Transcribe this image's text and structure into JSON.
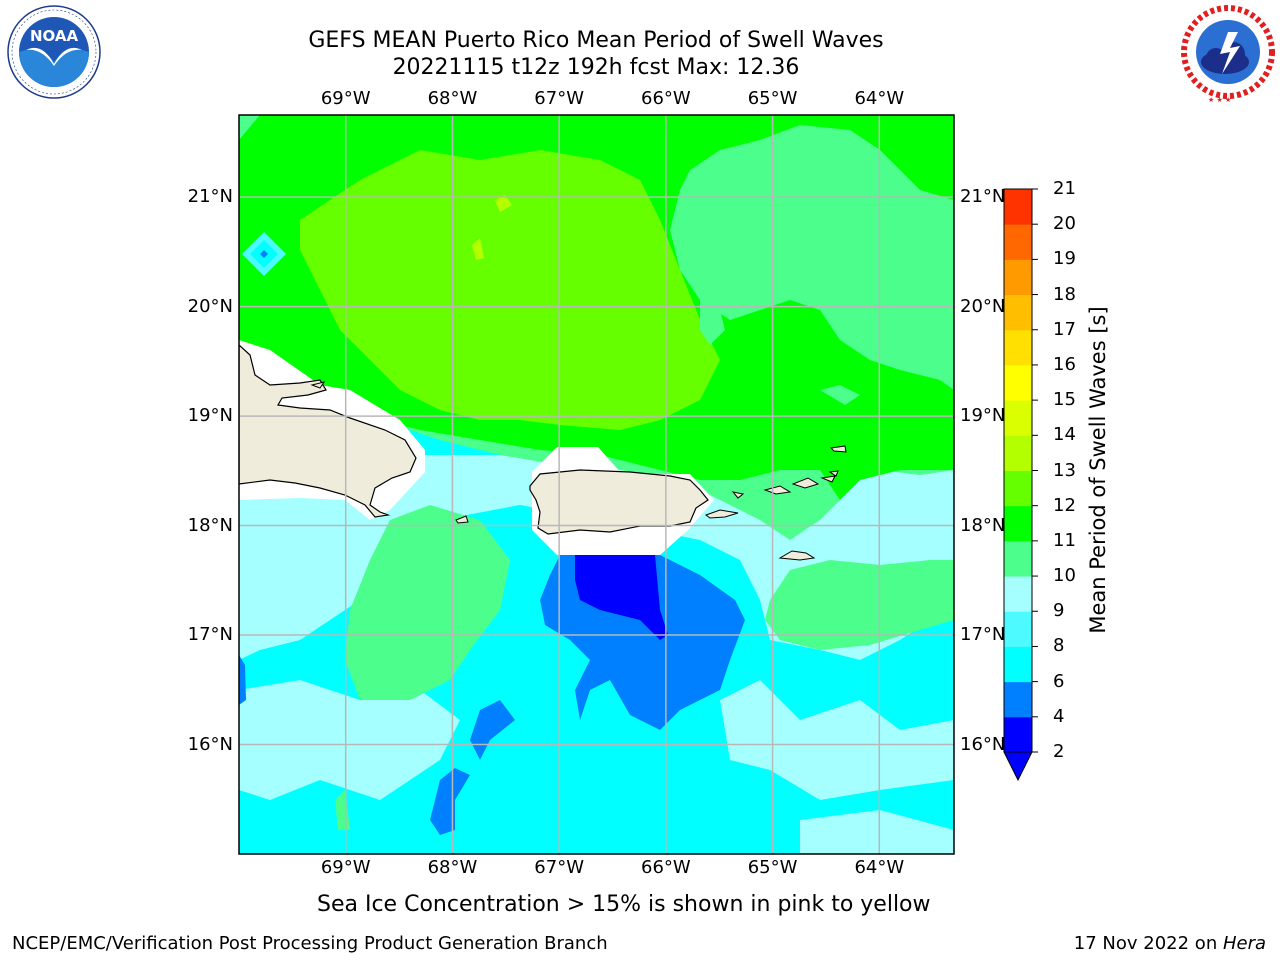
{
  "title": {
    "line1": "GEFS MEAN Puerto Rico Mean Period of Swell Waves",
    "line2": "20221115 t12z 192h fcst   Max: 12.36"
  },
  "logos": {
    "left": {
      "text": "NOAA",
      "ring_text": "NATIONAL OCEANIC AND ATMOSPHERIC ADMINISTRATION · U.S. DEPARTMENT OF COMMERCE"
    },
    "right": {
      "ring_text": "NATIONAL WEATHER SERVICE"
    }
  },
  "map": {
    "lon_labels": [
      "69°W",
      "68°W",
      "67°W",
      "66°W",
      "65°W",
      "64°W"
    ],
    "lat_labels": [
      "21°N",
      "20°N",
      "19°N",
      "18°N",
      "17°N",
      "16°N"
    ],
    "lon_range": [
      -70.0,
      -63.3
    ],
    "lat_range": [
      15.0,
      21.75
    ],
    "field": "Mean Period of Swell Waves",
    "grid": true
  },
  "colorbar": {
    "label": "Mean Period of Swell Waves [s]",
    "ticks": [
      "21",
      "20",
      "19",
      "18",
      "17",
      "16",
      "15",
      "14",
      "13",
      "12",
      "11",
      "10",
      "9",
      "8",
      "6",
      "4",
      "2"
    ],
    "levels": [
      2,
      4,
      6,
      8,
      9,
      10,
      11,
      12,
      13,
      14,
      15,
      16,
      17,
      18,
      19,
      20,
      21
    ],
    "colors": [
      "#0000ff",
      "#0080ff",
      "#00ffff",
      "#4dfaff",
      "#a6ffff",
      "#4cff8c",
      "#00ff00",
      "#66ff00",
      "#b3ff00",
      "#d9ff00",
      "#ffff00",
      "#ffe000",
      "#ffbf00",
      "#ff9a00",
      "#ff6800",
      "#ff3300",
      "#ff0000"
    ],
    "under_color": "#0000ff"
  },
  "caption": "Sea Ice Concentration > 15% is shown in pink to yellow",
  "footer": {
    "left": "NCEP/EMC/Verification Post Processing Product Generation Branch",
    "right_date": "17 Nov 2022 on ",
    "right_host": "Hera"
  }
}
